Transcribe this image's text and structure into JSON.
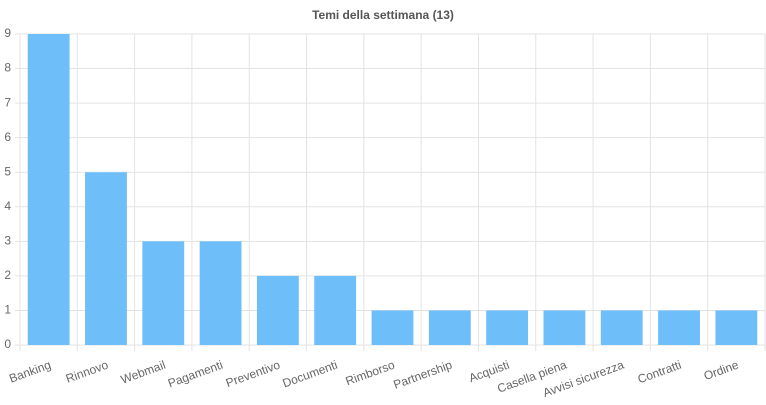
{
  "chart_data": {
    "type": "bar",
    "title": "Temi della settimana (13)",
    "categories": [
      "Banking",
      "Rinnovo",
      "Webmail",
      "Pagamenti",
      "Preventivo",
      "Documenti",
      "Rimborso",
      "Partnership",
      "Acquisti",
      "Casella piena",
      "Avvisi sicurezza",
      "Contratti",
      "Ordine"
    ],
    "values": [
      9,
      5,
      3,
      3,
      2,
      2,
      1,
      1,
      1,
      1,
      1,
      1,
      1
    ],
    "color": "#6ebff9",
    "ylim": [
      0,
      9
    ],
    "yticks": [
      0,
      1,
      2,
      3,
      4,
      5,
      6,
      7,
      8,
      9
    ],
    "grid": true
  }
}
